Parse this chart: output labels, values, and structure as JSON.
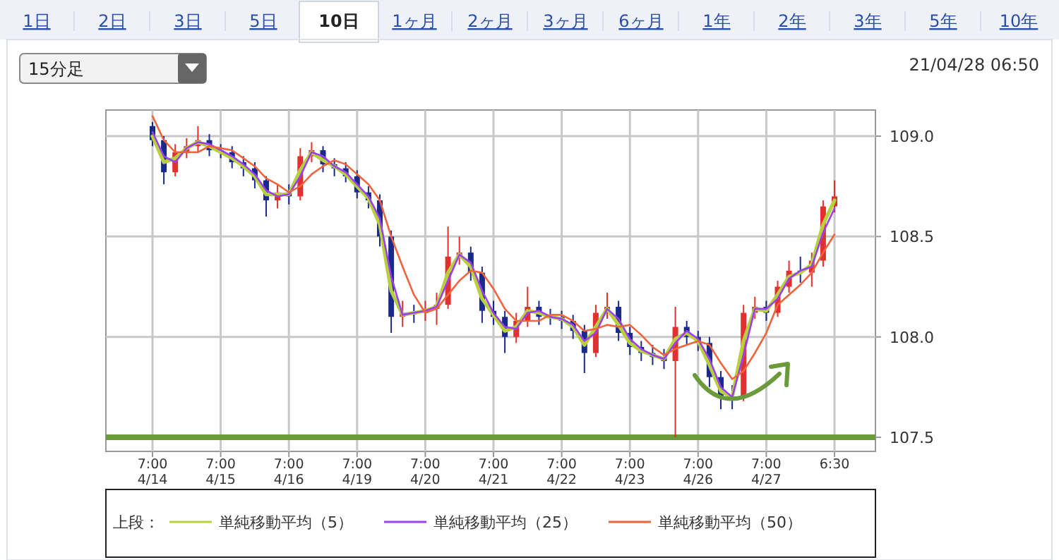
{
  "chart_data": {
    "type": "candlestick",
    "categories": [
      "7:00\n4/14",
      null,
      null,
      null,
      null,
      null,
      "7:00\n4/15",
      null,
      null,
      null,
      null,
      null,
      "7:00\n4/16",
      null,
      null,
      null,
      null,
      null,
      "7:00\n4/19",
      null,
      null,
      null,
      null,
      null,
      "7:00\n4/20",
      null,
      null,
      null,
      null,
      null,
      "7:00\n4/21",
      null,
      null,
      null,
      null,
      null,
      "7:00\n4/22",
      null,
      null,
      null,
      null,
      null,
      "7:00\n4/23",
      null,
      null,
      null,
      null,
      null,
      "7:00\n4/26",
      null,
      null,
      null,
      null,
      null,
      "7:00\n4/27",
      null,
      null,
      null,
      null,
      null,
      "6:30"
    ],
    "ohlc": [
      [
        109.05,
        109.07,
        108.95,
        108.98
      ],
      [
        108.98,
        109.0,
        108.76,
        108.82
      ],
      [
        108.82,
        108.96,
        108.8,
        108.92
      ],
      [
        108.92,
        108.99,
        108.89,
        108.95
      ],
      [
        108.95,
        109.05,
        108.92,
        108.98
      ],
      [
        108.98,
        109.01,
        108.9,
        108.93
      ],
      [
        108.93,
        108.96,
        108.89,
        108.92
      ],
      [
        108.92,
        108.95,
        108.84,
        108.87
      ],
      [
        108.87,
        108.9,
        108.8,
        108.84
      ],
      [
        108.84,
        108.87,
        108.74,
        108.78
      ],
      [
        108.78,
        108.8,
        108.6,
        108.68
      ],
      [
        108.68,
        108.76,
        108.64,
        108.72
      ],
      [
        108.72,
        108.76,
        108.66,
        108.7
      ],
      [
        108.7,
        108.94,
        108.68,
        108.9
      ],
      [
        108.9,
        108.97,
        108.87,
        108.93
      ],
      [
        108.93,
        108.95,
        108.82,
        108.86
      ],
      [
        108.86,
        108.89,
        108.8,
        108.84
      ],
      [
        108.84,
        108.87,
        108.77,
        108.8
      ],
      [
        108.8,
        108.83,
        108.69,
        108.72
      ],
      [
        108.72,
        108.75,
        108.64,
        108.68
      ],
      [
        108.68,
        108.71,
        108.45,
        108.5
      ],
      [
        108.5,
        108.53,
        108.02,
        108.1
      ],
      [
        108.1,
        108.18,
        108.05,
        108.12
      ],
      [
        108.12,
        108.16,
        108.07,
        108.12
      ],
      [
        108.12,
        108.18,
        108.08,
        108.14
      ],
      [
        108.14,
        108.22,
        108.06,
        108.16
      ],
      [
        108.16,
        108.55,
        108.14,
        108.4
      ],
      [
        108.4,
        108.5,
        108.36,
        108.42
      ],
      [
        108.42,
        108.45,
        108.28,
        108.32
      ],
      [
        108.32,
        108.35,
        108.07,
        108.13
      ],
      [
        108.13,
        108.18,
        108.06,
        108.1
      ],
      [
        108.1,
        108.13,
        107.92,
        108.0
      ],
      [
        108.0,
        108.12,
        107.97,
        108.08
      ],
      [
        108.08,
        108.25,
        108.05,
        108.15
      ],
      [
        108.15,
        108.18,
        108.06,
        108.1
      ],
      [
        108.1,
        108.14,
        108.06,
        108.1
      ],
      [
        108.1,
        108.13,
        108.04,
        108.08
      ],
      [
        108.08,
        108.11,
        107.99,
        108.03
      ],
      [
        108.03,
        108.06,
        107.82,
        107.92
      ],
      [
        107.92,
        108.16,
        107.9,
        108.12
      ],
      [
        108.12,
        108.22,
        108.09,
        108.15
      ],
      [
        108.15,
        108.18,
        107.98,
        108.02
      ],
      [
        108.02,
        108.05,
        107.91,
        107.95
      ],
      [
        107.95,
        107.98,
        107.88,
        107.92
      ],
      [
        107.92,
        107.96,
        107.86,
        107.9
      ],
      [
        107.9,
        107.94,
        107.84,
        107.88
      ],
      [
        107.88,
        108.15,
        107.5,
        108.05
      ],
      [
        108.05,
        108.08,
        107.96,
        108.0
      ],
      [
        108.0,
        108.03,
        107.93,
        107.97
      ],
      [
        107.97,
        108.0,
        107.75,
        107.8
      ],
      [
        107.8,
        107.83,
        107.64,
        107.7
      ],
      [
        107.7,
        107.76,
        107.64,
        107.7
      ],
      [
        107.7,
        108.16,
        107.68,
        108.12
      ],
      [
        108.12,
        108.2,
        108.09,
        108.15
      ],
      [
        108.15,
        108.18,
        108.08,
        108.12
      ],
      [
        108.12,
        108.28,
        108.1,
        108.25
      ],
      [
        108.25,
        108.38,
        108.22,
        108.33
      ],
      [
        108.33,
        108.4,
        108.27,
        108.32
      ],
      [
        108.32,
        108.42,
        108.25,
        108.38
      ],
      [
        108.38,
        108.68,
        108.35,
        108.65
      ],
      [
        108.65,
        108.78,
        108.62,
        108.7
      ]
    ],
    "colors": [
      "#1a2a8a",
      "#1a2a8a",
      "#e03030",
      "#e03030",
      "#e03030",
      "#1a2a8a",
      "#1a2a8a",
      "#1a2a8a",
      "#1a2a8a",
      "#1a2a8a",
      "#1a2a8a",
      "#e03030",
      "#1a2a8a",
      "#e03030",
      "#e03030",
      "#1a2a8a",
      "#1a2a8a",
      "#1a2a8a",
      "#1a2a8a",
      "#1a2a8a",
      "#1a2a8a",
      "#1a2a8a",
      "#e03030",
      "#1a2a8a",
      "#e03030",
      "#e03030",
      "#e03030",
      "#e03030",
      "#1a2a8a",
      "#1a2a8a",
      "#1a2a8a",
      "#1a2a8a",
      "#e03030",
      "#e03030",
      "#1a2a8a",
      "#1a2a8a",
      "#1a2a8a",
      "#1a2a8a",
      "#1a2a8a",
      "#e03030",
      "#e03030",
      "#1a2a8a",
      "#1a2a8a",
      "#1a2a8a",
      "#1a2a8a",
      "#1a2a8a",
      "#e03030",
      "#1a2a8a",
      "#1a2a8a",
      "#1a2a8a",
      "#1a2a8a",
      "#1a2a8a",
      "#e03030",
      "#e03030",
      "#1a2a8a",
      "#e03030",
      "#e03030",
      "#1a2a8a",
      "#e03030",
      "#e03030",
      "#e03030"
    ],
    "series": [
      {
        "type": "line",
        "name": "単純移動平均（5）",
        "color": "#b8d040",
        "values": [
          109.0,
          108.87,
          108.89,
          108.94,
          108.97,
          108.95,
          108.92,
          108.89,
          108.85,
          108.8,
          108.71,
          108.71,
          108.71,
          108.83,
          108.92,
          108.88,
          108.85,
          108.81,
          108.75,
          108.69,
          108.56,
          108.23,
          108.11,
          108.12,
          108.13,
          108.15,
          108.32,
          108.41,
          108.35,
          108.19,
          108.11,
          108.03,
          108.05,
          108.13,
          108.12,
          108.1,
          108.09,
          108.05,
          107.96,
          108.05,
          108.14,
          108.06,
          107.97,
          107.93,
          107.91,
          107.89,
          107.99,
          108.02,
          107.98,
          107.86,
          107.73,
          107.7,
          107.98,
          108.14,
          108.13,
          108.21,
          108.3,
          108.32,
          108.36,
          108.56,
          108.68
        ]
      },
      {
        "type": "line",
        "name": "単純移動平均（25）",
        "color": "#9b40f0",
        "values": [
          109.02,
          108.9,
          108.87,
          108.94,
          108.97,
          108.96,
          108.93,
          108.9,
          108.86,
          108.81,
          108.73,
          108.7,
          108.71,
          108.8,
          108.92,
          108.9,
          108.85,
          108.82,
          108.76,
          108.7,
          108.59,
          108.3,
          108.11,
          108.12,
          108.13,
          108.15,
          108.28,
          108.41,
          108.37,
          108.23,
          108.12,
          108.05,
          108.04,
          108.12,
          108.13,
          108.1,
          108.09,
          108.06,
          107.98,
          108.02,
          108.14,
          108.09,
          107.99,
          107.94,
          107.91,
          107.89,
          107.97,
          108.03,
          107.99,
          107.89,
          107.75,
          107.7,
          107.91,
          108.14,
          108.14,
          108.19,
          108.29,
          108.33,
          108.35,
          108.52,
          108.64
        ]
      },
      {
        "type": "line",
        "name": "単純移動平均（50）",
        "color": "#f0643c",
        "values": [
          109.1,
          108.98,
          108.92,
          108.92,
          108.92,
          108.95,
          108.94,
          108.93,
          108.89,
          108.85,
          108.79,
          108.76,
          108.72,
          108.75,
          108.81,
          108.85,
          108.88,
          108.86,
          108.81,
          108.76,
          108.68,
          108.5,
          108.35,
          108.21,
          108.12,
          108.14,
          108.21,
          108.28,
          108.33,
          108.32,
          108.24,
          108.14,
          108.08,
          108.08,
          108.08,
          108.11,
          108.11,
          108.08,
          108.03,
          108.04,
          108.06,
          108.05,
          108.06,
          108.01,
          107.95,
          107.91,
          107.94,
          107.96,
          107.98,
          107.96,
          107.87,
          107.79,
          107.83,
          107.92,
          108.02,
          108.16,
          108.21,
          108.26,
          108.32,
          108.42,
          108.51
        ]
      }
    ],
    "ylim": [
      107.43,
      109.13
    ],
    "yticks": [
      {
        "value": 107.5,
        "label": "107.5"
      },
      {
        "value": 108,
        "label": "108.0"
      },
      {
        "value": 108.5,
        "label": "108.5"
      },
      {
        "value": 109,
        "label": "109.0"
      }
    ],
    "grid": true,
    "legend": "bottom",
    "legend_title": "上段：",
    "ref_lines": [
      {
        "axis": "y",
        "value": 107.5,
        "color": "#6a9a3a"
      }
    ],
    "annotations": [
      "1日",
      "2日",
      "3日",
      "5日",
      "10日",
      "1ヶ月",
      "2ヶ月",
      "3ヶ月",
      "6ヶ月",
      "1年",
      "2年",
      "3年",
      "5年",
      "10年",
      "15分足",
      "21/04/28 06:50"
    ]
  }
}
